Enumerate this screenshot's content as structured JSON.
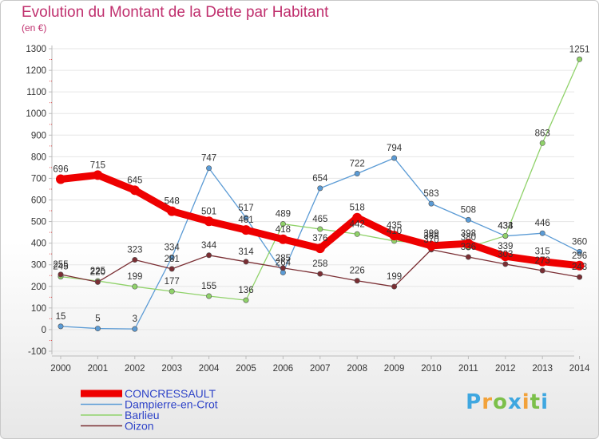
{
  "chart_data": {
    "type": "line",
    "title": "Evolution du Montant de la Dette par Habitant",
    "ylabel": "(en €)",
    "xlabel": "",
    "ylim": [
      -100,
      1300
    ],
    "yticks": [
      -100,
      0,
      100,
      200,
      300,
      400,
      500,
      600,
      700,
      800,
      900,
      1000,
      1100,
      1200,
      1300
    ],
    "categories": [
      "2000",
      "2001",
      "2002",
      "2003",
      "2004",
      "2005",
      "2006",
      "2007",
      "2008",
      "2009",
      "2010",
      "2011",
      "2012",
      "2013",
      "2014"
    ],
    "series": [
      {
        "name": "CONCRESSAULT",
        "color": "#ee0000",
        "values": [
          696,
          715,
          645,
          548,
          501,
          461,
          418,
          376,
          518,
          435,
          388,
          398,
          339,
          315,
          296
        ]
      },
      {
        "name": "Dampierre-en-Crot",
        "color": "#5b9bd5",
        "values": [
          15,
          5,
          3,
          334,
          747,
          517,
          264,
          654,
          722,
          794,
          583,
          508,
          433,
          446,
          360
        ]
      },
      {
        "name": "Barlieu",
        "color": "#90d26a",
        "values": [
          245,
          225,
          199,
          177,
          155,
          136,
          489,
          465,
          442,
          410,
          399,
          380,
          434,
          863,
          1251
        ]
      },
      {
        "name": "Oizon",
        "color": "#7a2e33",
        "values": [
          255,
          220,
          323,
          281,
          344,
          314,
          285,
          258,
          226,
          199,
          370,
          336,
          303,
          273,
          243
        ]
      }
    ]
  },
  "branding": {
    "letters": [
      "P",
      "r",
      "o",
      "x",
      "i",
      "t",
      "i"
    ],
    "colors": [
      "#3fa7e0",
      "#f2a23a",
      "#7cc04a",
      "#3fa7e0",
      "#f2a23a",
      "#7cc04a",
      "#3fa7e0"
    ]
  }
}
